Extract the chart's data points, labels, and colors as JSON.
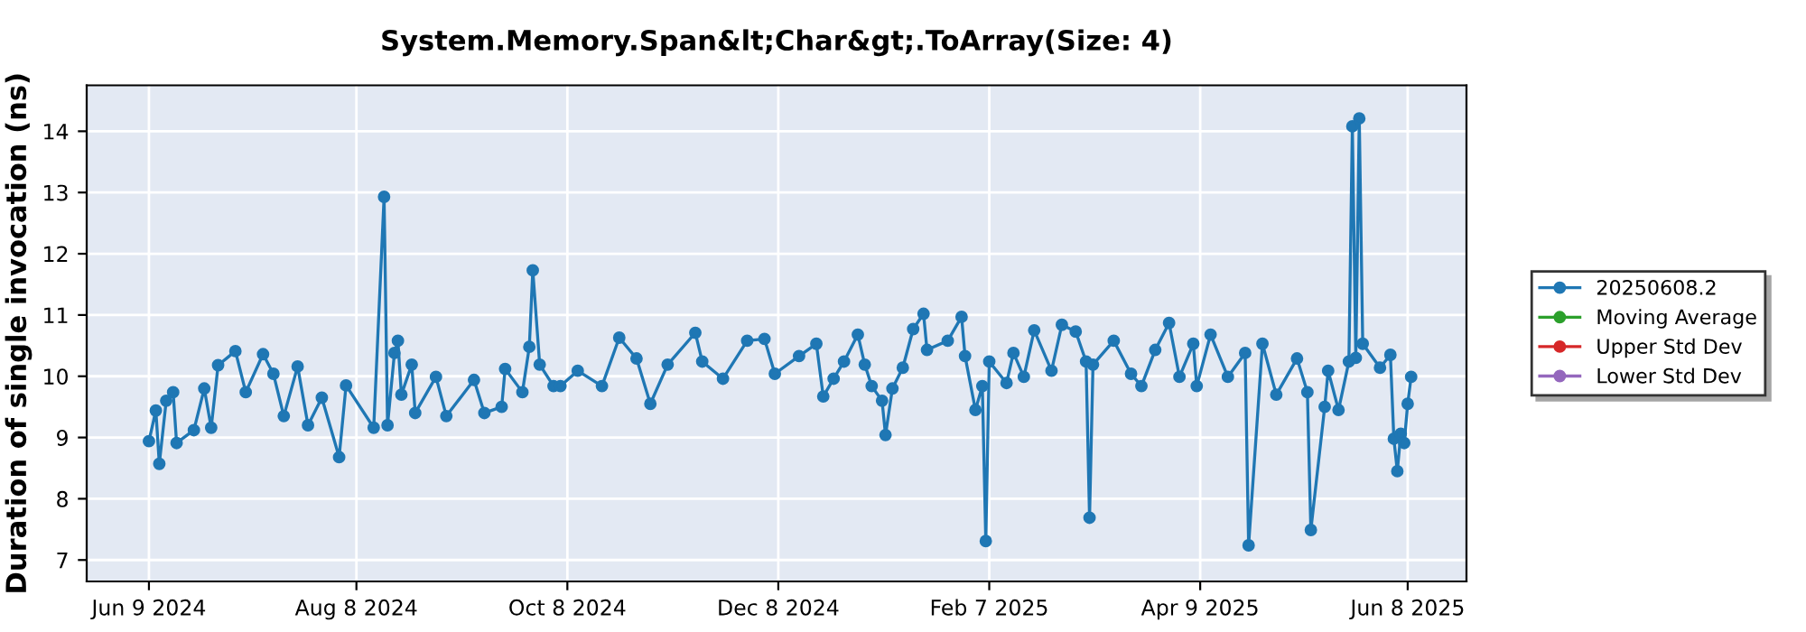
{
  "chart_data": {
    "type": "line",
    "title": "System.Memory.Span&lt;Char&gt;.ToArray(Size: 4)",
    "ylabel": "Duration of single invocation (ns)",
    "x": [
      "2024-06-09",
      "2024-06-11",
      "2024-06-12",
      "2024-06-14",
      "2024-06-16",
      "2024-06-17",
      "2024-06-22",
      "2024-06-25",
      "2024-06-27",
      "2024-06-29",
      "2024-07-04",
      "2024-07-07",
      "2024-07-12",
      "2024-07-15",
      "2024-07-18",
      "2024-07-22",
      "2024-07-25",
      "2024-07-29",
      "2024-08-03",
      "2024-08-05",
      "2024-08-13",
      "2024-08-16",
      "2024-08-17",
      "2024-08-19",
      "2024-08-20",
      "2024-08-21",
      "2024-08-24",
      "2024-08-25",
      "2024-08-31",
      "2024-09-03",
      "2024-09-11",
      "2024-09-14",
      "2024-09-19",
      "2024-09-20",
      "2024-09-25",
      "2024-09-27",
      "2024-09-28",
      "2024-09-30",
      "2024-10-04",
      "2024-10-06",
      "2024-10-11",
      "2024-10-18",
      "2024-10-23",
      "2024-10-28",
      "2024-11-01",
      "2024-11-06",
      "2024-11-14",
      "2024-11-16",
      "2024-11-22",
      "2024-11-29",
      "2024-12-04",
      "2024-12-07",
      "2024-12-14",
      "2024-12-19",
      "2024-12-21",
      "2024-12-24",
      "2024-12-27",
      "2024-12-31",
      "2025-01-02",
      "2025-01-04",
      "2025-01-07",
      "2025-01-08",
      "2025-01-10",
      "2025-01-13",
      "2025-01-16",
      "2025-01-19",
      "2025-01-20",
      "2025-01-26",
      "2025-01-30",
      "2025-01-31",
      "2025-02-03",
      "2025-02-05",
      "2025-02-06",
      "2025-02-07",
      "2025-02-12",
      "2025-02-14",
      "2025-02-17",
      "2025-02-20",
      "2025-02-25",
      "2025-02-28",
      "2025-03-04",
      "2025-03-07",
      "2025-03-08",
      "2025-03-09",
      "2025-03-15",
      "2025-03-20",
      "2025-03-23",
      "2025-03-27",
      "2025-03-31",
      "2025-04-03",
      "2025-04-07",
      "2025-04-08",
      "2025-04-12",
      "2025-04-17",
      "2025-04-22",
      "2025-04-23",
      "2025-04-27",
      "2025-05-01",
      "2025-05-07",
      "2025-05-10",
      "2025-05-11",
      "2025-05-15",
      "2025-05-16",
      "2025-05-19",
      "2025-05-22",
      "2025-05-23",
      "2025-05-24",
      "2025-05-25",
      "2025-05-26",
      "2025-05-31",
      "2025-06-03",
      "2025-06-04",
      "2025-06-05",
      "2025-06-06",
      "2025-06-07",
      "2025-06-08",
      "2025-06-09"
    ],
    "series": [
      {
        "name": "20250608.2",
        "color": "#1f77b4",
        "values": [
          8.94,
          9.44,
          8.57,
          9.6,
          9.74,
          8.91,
          9.12,
          9.8,
          9.16,
          10.18,
          10.41,
          9.74,
          10.36,
          10.04,
          9.35,
          10.16,
          9.2,
          9.65,
          8.68,
          9.85,
          9.16,
          12.93,
          9.2,
          10.38,
          10.58,
          9.7,
          10.19,
          9.4,
          9.99,
          9.35,
          9.94,
          9.4,
          9.5,
          10.12,
          9.74,
          10.48,
          11.73,
          10.19,
          9.84,
          9.84,
          10.09,
          9.84,
          10.63,
          10.29,
          9.55,
          10.19,
          10.71,
          10.24,
          9.96,
          10.58,
          10.61,
          10.04,
          10.33,
          10.53,
          9.67,
          9.96,
          10.24,
          10.68,
          10.19,
          9.84,
          9.6,
          9.04,
          9.8,
          10.14,
          10.77,
          11.02,
          10.43,
          10.58,
          10.97,
          10.33,
          9.45,
          9.84,
          7.31,
          10.24,
          9.89,
          10.38,
          9.99,
          10.75,
          10.09,
          10.84,
          10.73,
          10.24,
          7.69,
          10.19,
          10.58,
          10.04,
          9.84,
          10.43,
          10.87,
          9.99,
          10.53,
          9.84,
          10.68,
          9.99,
          10.38,
          7.24,
          10.53,
          9.7,
          10.29,
          9.74,
          7.49,
          9.5,
          10.09,
          9.45,
          10.24,
          14.08,
          10.3,
          14.21,
          10.53,
          10.14,
          10.35,
          8.98,
          8.45,
          9.06,
          8.91,
          9.55,
          9.99
        ]
      },
      {
        "name": "Moving Average",
        "color": "#2ca02c",
        "values": [
          null,
          null,
          null,
          null,
          null,
          null,
          null,
          null,
          null,
          null,
          null,
          null,
          null,
          null,
          null,
          null,
          null,
          null,
          null,
          null,
          null,
          null,
          null,
          null,
          null,
          null,
          null,
          null,
          null,
          null,
          null,
          null,
          null,
          null,
          null,
          null,
          null,
          null,
          null,
          null,
          null,
          null,
          null,
          null,
          null,
          null,
          null,
          null,
          null,
          null,
          null,
          null,
          null,
          null,
          null,
          null,
          null,
          null,
          null,
          null,
          null,
          null,
          null,
          null,
          null,
          null,
          null,
          null,
          null,
          null,
          null,
          null,
          null,
          null,
          null,
          null,
          null,
          null,
          null,
          null,
          null,
          null,
          null,
          null,
          null,
          null,
          null,
          null,
          null,
          null,
          null,
          null,
          null,
          null,
          null,
          null,
          null,
          null,
          null,
          null,
          null,
          null,
          null,
          null,
          null,
          null,
          null,
          null,
          null,
          null,
          null,
          null,
          null,
          null,
          null,
          null,
          null
        ]
      },
      {
        "name": "Upper Std Dev",
        "color": "#d62728",
        "values": [
          null,
          null,
          null,
          null,
          null,
          null,
          null,
          null,
          null,
          null,
          null,
          null,
          null,
          null,
          null,
          null,
          null,
          null,
          null,
          null,
          null,
          null,
          null,
          null,
          null,
          null,
          null,
          null,
          null,
          null,
          null,
          null,
          null,
          null,
          null,
          null,
          null,
          null,
          null,
          null,
          null,
          null,
          null,
          null,
          null,
          null,
          null,
          null,
          null,
          null,
          null,
          null,
          null,
          null,
          null,
          null,
          null,
          null,
          null,
          null,
          null,
          null,
          null,
          null,
          null,
          null,
          null,
          null,
          null,
          null,
          null,
          null,
          null,
          null,
          null,
          null,
          null,
          null,
          null,
          null,
          null,
          null,
          null,
          null,
          null,
          null,
          null,
          null,
          null,
          null,
          null,
          null,
          null,
          null,
          null,
          null,
          null,
          null,
          null,
          null,
          null,
          null,
          null,
          null,
          null,
          null,
          null,
          null,
          null,
          null,
          null,
          null,
          null,
          null,
          null,
          null,
          null
        ]
      },
      {
        "name": "Lower Std Dev",
        "color": "#9467bd",
        "values": [
          null,
          null,
          null,
          null,
          null,
          null,
          null,
          null,
          null,
          null,
          null,
          null,
          null,
          null,
          null,
          null,
          null,
          null,
          null,
          null,
          null,
          null,
          null,
          null,
          null,
          null,
          null,
          null,
          null,
          null,
          null,
          null,
          null,
          null,
          null,
          null,
          null,
          null,
          null,
          null,
          null,
          null,
          null,
          null,
          null,
          null,
          null,
          null,
          null,
          null,
          null,
          null,
          null,
          null,
          null,
          null,
          null,
          null,
          null,
          null,
          null,
          null,
          null,
          null,
          null,
          null,
          null,
          null,
          null,
          null,
          null,
          null,
          null,
          null,
          null,
          null,
          null,
          null,
          null,
          null,
          null,
          null,
          null,
          null,
          null,
          null,
          null,
          null,
          null,
          null,
          null,
          null,
          null,
          null,
          null,
          null,
          null,
          null,
          null,
          null,
          null,
          null,
          null,
          null,
          null,
          null,
          null,
          null,
          null,
          null,
          null,
          null,
          null,
          null,
          null,
          null,
          null
        ]
      }
    ],
    "xlim": [
      "2024-05-22",
      "2025-06-25"
    ],
    "xticks": [
      {
        "value": "2024-06-09",
        "label": "Jun 9 2024"
      },
      {
        "value": "2024-08-08",
        "label": "Aug 8 2024"
      },
      {
        "value": "2024-10-08",
        "label": "Oct 8 2024"
      },
      {
        "value": "2024-12-08",
        "label": "Dec 8 2024"
      },
      {
        "value": "2025-02-07",
        "label": "Feb 7 2025"
      },
      {
        "value": "2025-04-09",
        "label": "Apr 9 2025"
      },
      {
        "value": "2025-06-08",
        "label": "Jun 8 2025"
      }
    ],
    "ylim": [
      6.65,
      14.75
    ],
    "yticks": [
      7,
      8,
      9,
      10,
      11,
      12,
      13,
      14
    ],
    "grid": true,
    "legend": "right",
    "marker": "circle",
    "line_style": "solid"
  }
}
